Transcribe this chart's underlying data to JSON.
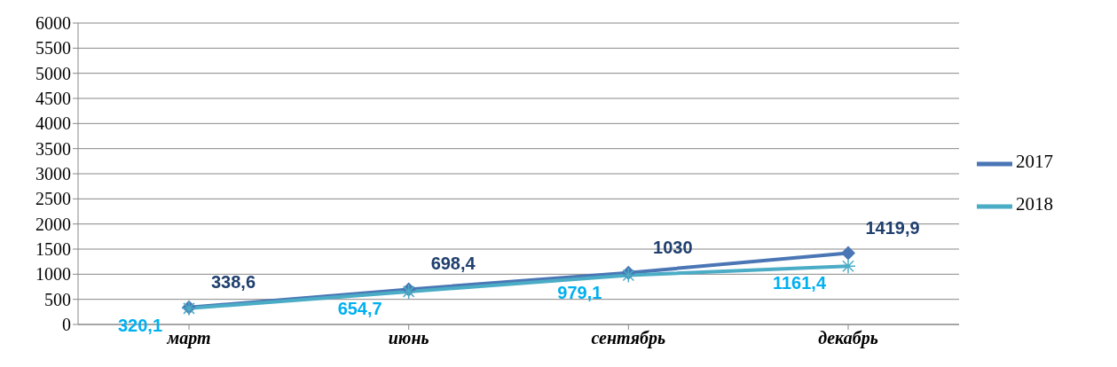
{
  "chart_data": {
    "type": "line",
    "categories": [
      "март",
      "июнь",
      "сентябрь",
      "декабрь"
    ],
    "series": [
      {
        "name": "2017",
        "color": "#4a76b5",
        "values": [
          338.6,
          698.4,
          1030,
          1419.9
        ],
        "value_labels": [
          "338,6",
          "698,4",
          "1030",
          "1419,9"
        ],
        "marker": "diamond"
      },
      {
        "name": "2018",
        "color": "#4bacc6",
        "values": [
          320.1,
          654.7,
          979.1,
          1161.4
        ],
        "value_labels": [
          "320,1",
          "654,7",
          "979,1",
          "1161,4"
        ],
        "marker": "cross"
      }
    ],
    "ylim": [
      0,
      6000
    ],
    "yticks": [
      0,
      500,
      1000,
      1500,
      2000,
      2500,
      3000,
      3500,
      4000,
      4500,
      5000,
      5500,
      6000
    ],
    "grid": "y",
    "legend": "right",
    "line_style": "solid"
  }
}
